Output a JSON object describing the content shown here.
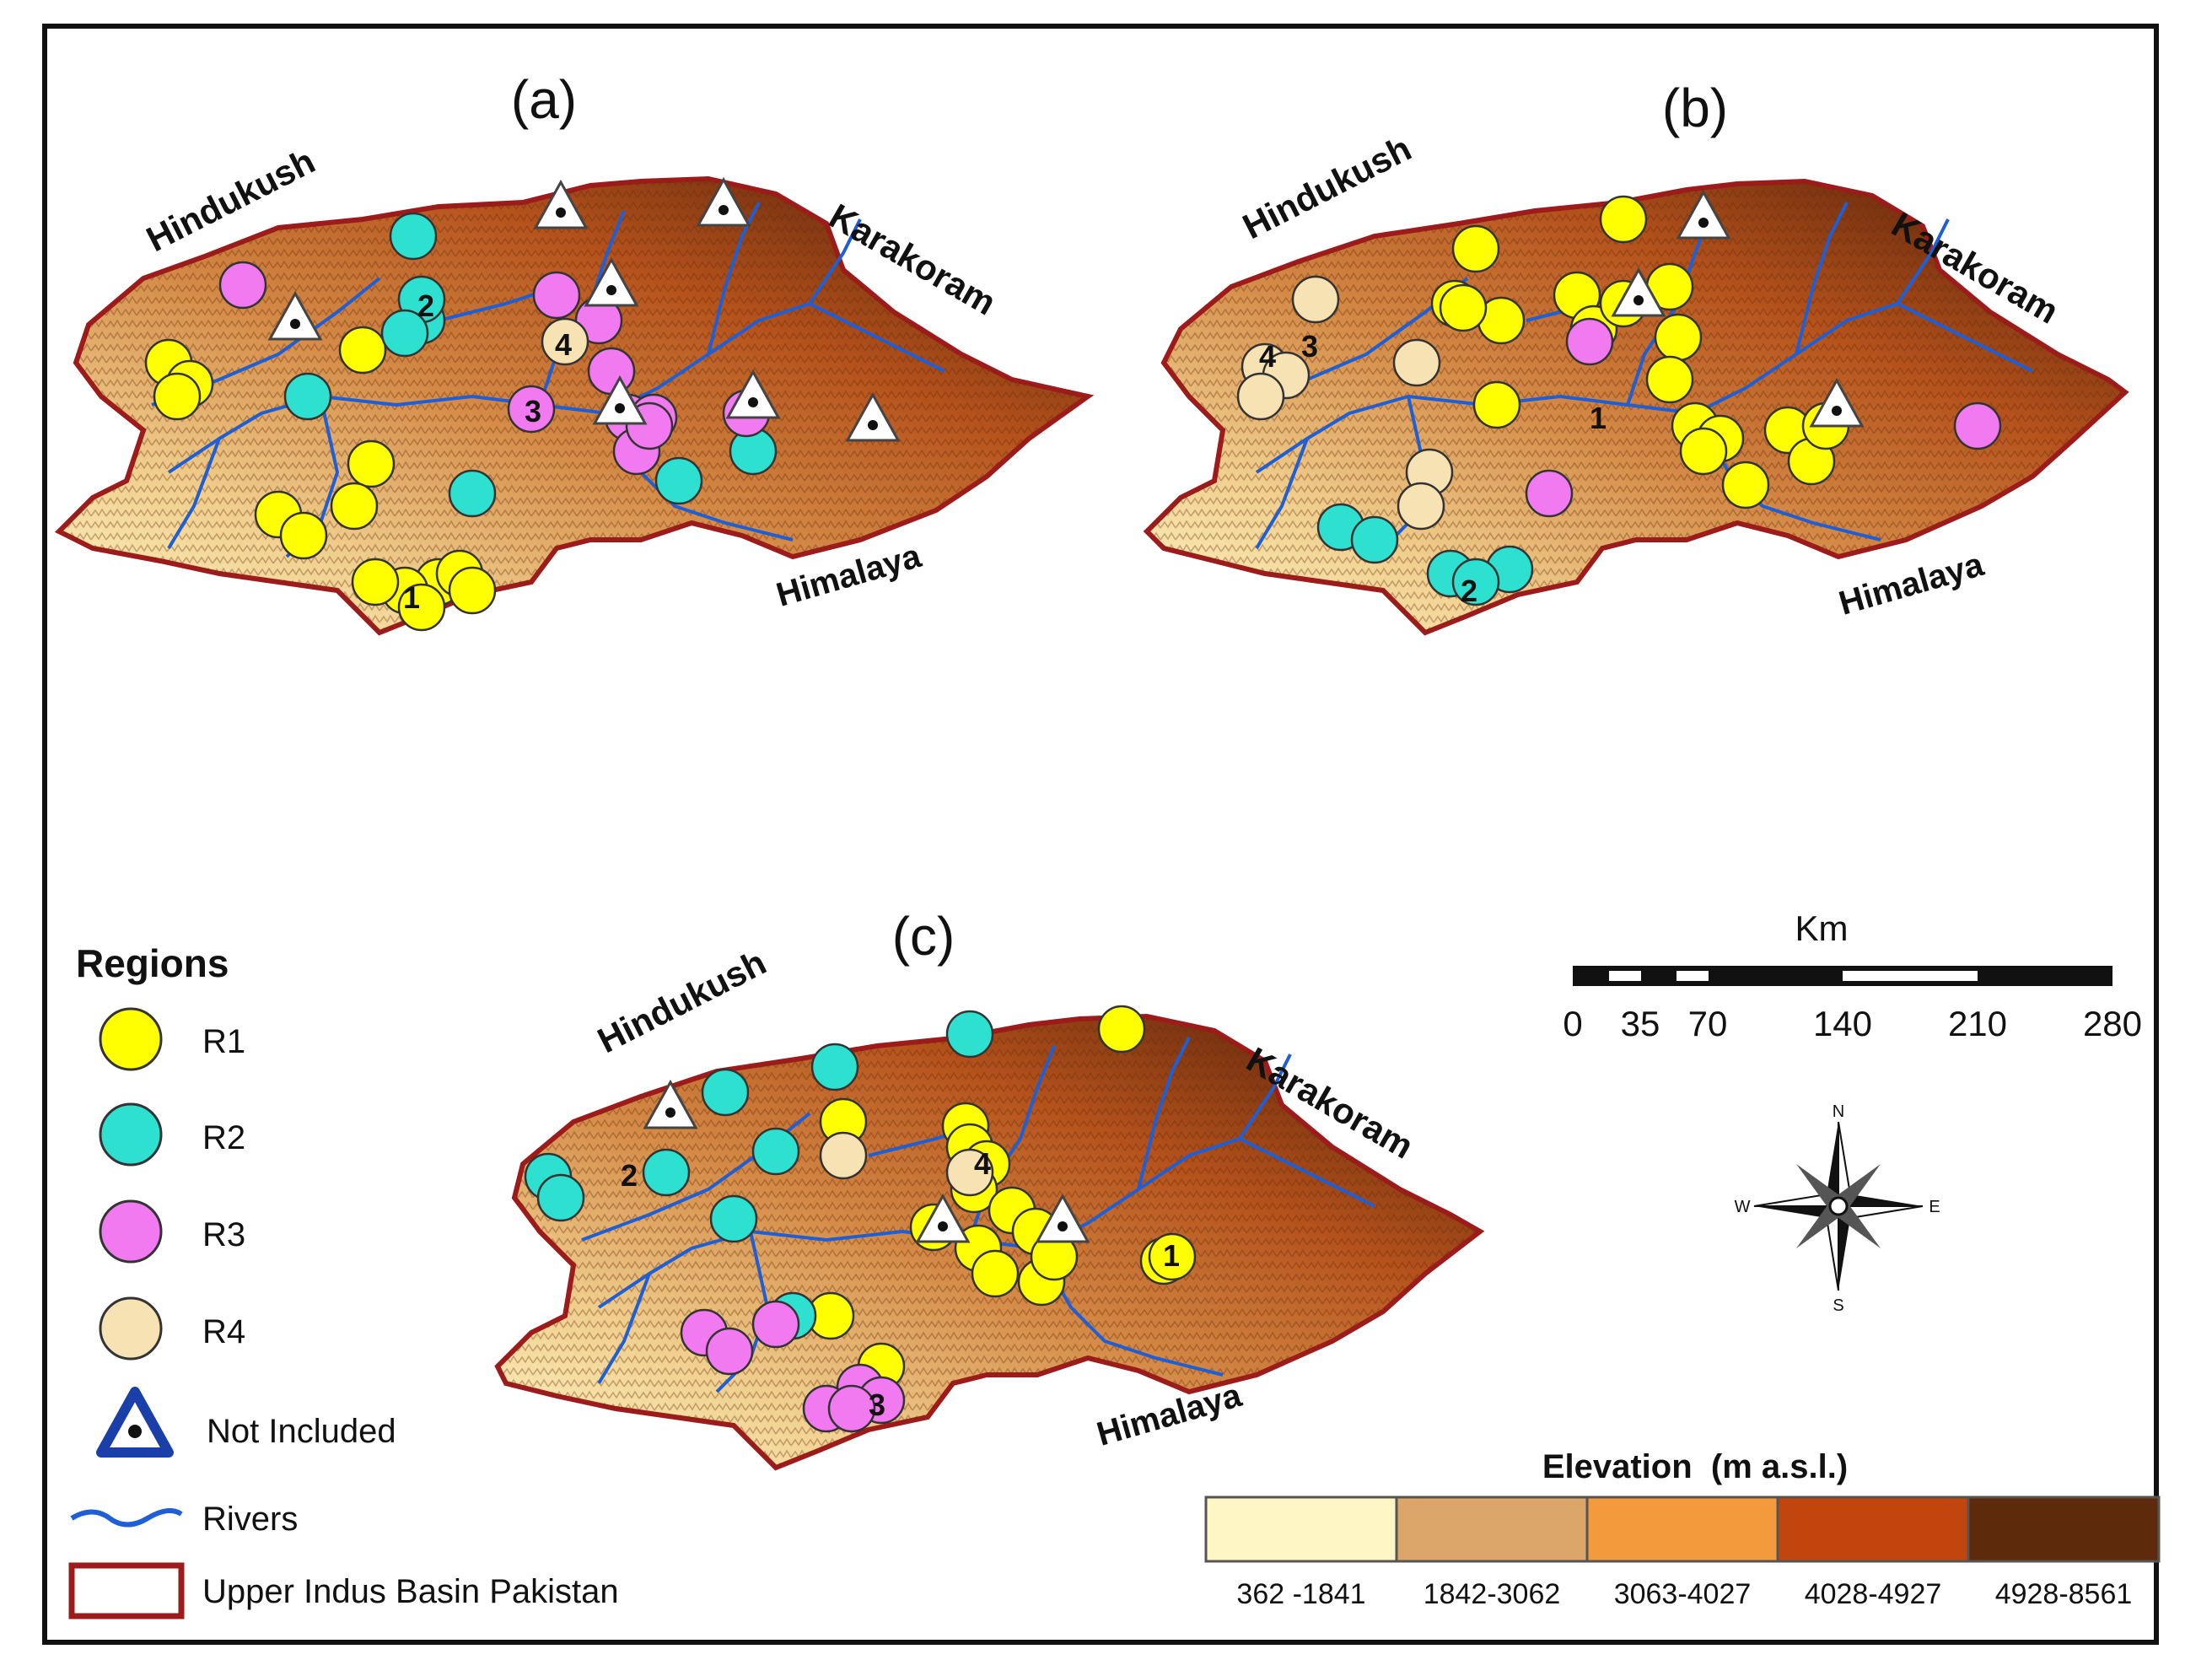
{
  "panels": [
    {
      "id": "a",
      "label": "(a)",
      "mountains": [
        "Hindukush",
        "Karakoram",
        "Himalaya"
      ],
      "region_numbers": [
        "1",
        "2",
        "3",
        "4"
      ],
      "stations": [
        {
          "r": "R1",
          "n": 14
        },
        {
          "r": "R2",
          "n": 8
        },
        {
          "r": "R3",
          "n": 10
        },
        {
          "r": "R4",
          "n": 1
        },
        {
          "r": "NI",
          "n": 7
        }
      ]
    },
    {
      "id": "b",
      "label": "(b)",
      "mountains": [
        "Hindukush",
        "Karakoram",
        "Himalaya"
      ],
      "region_numbers": [
        "1",
        "2",
        "3",
        "4"
      ],
      "stations": [
        {
          "r": "R1",
          "n": 19
        },
        {
          "r": "R2",
          "n": 5
        },
        {
          "r": "R3",
          "n": 3
        },
        {
          "r": "R4",
          "n": 7
        },
        {
          "r": "NI",
          "n": 3
        }
      ]
    },
    {
      "id": "c",
      "label": "(c)",
      "mountains": [
        "Hindukush",
        "Karakoram",
        "Himalaya"
      ],
      "region_numbers": [
        "1",
        "2",
        "3",
        "4"
      ],
      "stations": [
        {
          "r": "R1",
          "n": 17
        },
        {
          "r": "R2",
          "n": 9
        },
        {
          "r": "R3",
          "n": 7
        },
        {
          "r": "R4",
          "n": 2
        },
        {
          "r": "NI",
          "n": 3
        }
      ]
    }
  ],
  "legend": {
    "title": "Regions",
    "items": [
      {
        "key": "R1",
        "label": "R1",
        "color": "#ffff00"
      },
      {
        "key": "R2",
        "label": "R2",
        "color": "#2de0cf"
      },
      {
        "key": "R3",
        "label": "R3",
        "color": "#f27af0"
      },
      {
        "key": "R4",
        "label": "R4",
        "color": "#f7e2b4"
      },
      {
        "key": "NI",
        "label": "Not Included",
        "color": "#1a3fa8"
      },
      {
        "key": "rivers",
        "label": "Rivers",
        "color": "#1f5fd6"
      },
      {
        "key": "basin",
        "label": "Upper Indus Basin Pakistan",
        "color": "#9e1b1b"
      }
    ]
  },
  "scalebar": {
    "unit": "Km",
    "ticks": [
      "0",
      "35",
      "70",
      "140",
      "210",
      "280"
    ]
  },
  "compass": {
    "n": "N",
    "s": "S",
    "e": "E",
    "w": "W"
  },
  "elevation_legend": {
    "title": "Elevation  (m a.s.l.)",
    "classes": [
      {
        "label": "362 -1841",
        "color": "#fef6c4"
      },
      {
        "label": "1842-3062",
        "color": "#dca56a"
      },
      {
        "label": "3063-4027",
        "color": "#f39a3c"
      },
      {
        "label": "4028-4927",
        "color": "#c2450e"
      },
      {
        "label": "4928-8561",
        "color": "#5e2a0c"
      }
    ]
  }
}
